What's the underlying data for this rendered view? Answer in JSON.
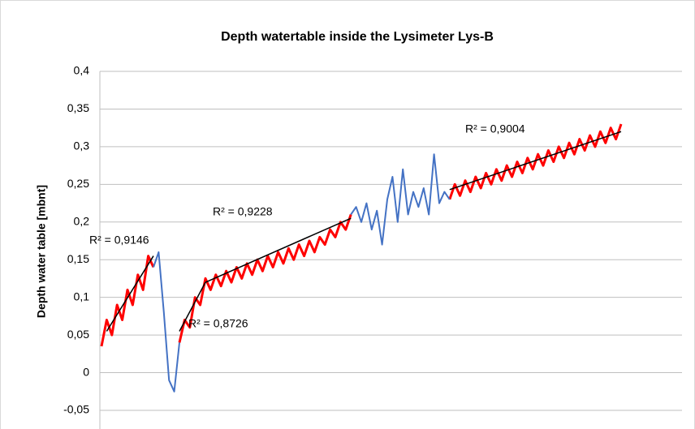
{
  "chart_data": {
    "type": "line",
    "title": "Depth watertable inside the Lysimeter Lys-B",
    "y_label": "Depth water table  [mbnt]",
    "ylim": [
      -0.05,
      0.4
    ],
    "yticks": [
      {
        "value": -0.05,
        "label": "-0,05"
      },
      0,
      {
        "value": 0.05,
        "label": "0,05"
      },
      {
        "value": 0.1,
        "label": "0,1"
      },
      {
        "value": 0.15,
        "label": "0,15"
      },
      {
        "value": 0.2,
        "label": "0,2"
      },
      {
        "value": 0.25,
        "label": "0,25"
      },
      {
        "value": 0.3,
        "label": "0,3"
      },
      {
        "value": 0.35,
        "label": "0,35"
      },
      {
        "value": 0.4,
        "label": "0,4"
      }
    ],
    "grid": true,
    "categories": [
      null,
      null,
      null,
      null,
      null,
      null,
      null,
      null,
      null,
      null,
      null,
      null,
      null,
      null,
      null,
      null,
      null,
      null,
      null,
      null,
      null,
      null,
      null,
      null,
      null,
      null,
      null,
      null,
      null,
      null,
      null,
      null,
      null,
      null,
      null,
      null,
      null,
      null,
      null,
      null,
      null,
      null,
      null,
      null,
      null,
      null,
      null,
      null,
      null,
      null,
      null,
      null,
      null,
      null,
      null,
      null,
      null,
      null,
      null,
      null,
      null,
      null,
      null,
      null,
      null,
      null,
      null,
      null,
      null,
      null,
      null,
      null,
      null,
      null,
      null,
      null,
      null,
      null,
      null,
      null,
      null,
      null,
      null,
      null,
      null,
      null,
      null,
      null,
      null,
      null,
      null,
      null,
      null,
      null,
      null,
      null,
      null,
      null,
      null,
      null,
      null
    ],
    "series": [
      {
        "color": "#ff0000",
        "values": [
          0.035,
          0.07,
          0.05,
          0.09,
          0.07,
          0.11,
          0.09,
          0.13,
          0.11,
          0.155,
          0.14,
          null,
          null,
          null,
          null,
          0.04,
          0.07,
          0.06,
          0.1,
          0.09,
          0.125,
          0.11,
          0.13,
          0.115,
          0.135,
          0.12,
          0.14,
          0.125,
          0.145,
          0.13,
          0.15,
          0.135,
          0.155,
          0.14,
          0.16,
          0.145,
          0.165,
          0.15,
          0.17,
          0.155,
          0.175,
          0.16,
          0.18,
          0.17,
          0.19,
          0.18,
          0.2,
          0.19,
          0.21,
          null,
          null,
          null,
          null,
          null,
          null,
          null,
          null,
          null,
          null,
          null,
          null,
          null,
          null,
          null,
          null,
          null,
          null,
          0.23,
          0.25,
          0.235,
          0.255,
          0.24,
          0.26,
          0.245,
          0.265,
          0.25,
          0.27,
          0.255,
          0.275,
          0.26,
          0.28,
          0.265,
          0.285,
          0.27,
          0.29,
          0.275,
          0.295,
          0.28,
          0.3,
          0.285,
          0.305,
          0.29,
          0.31,
          0.295,
          0.315,
          0.3,
          0.32,
          0.305,
          0.325,
          0.31,
          0.33
        ]
      },
      {
        "color": "#4472c4",
        "values": [
          null,
          null,
          null,
          null,
          null,
          null,
          null,
          null,
          null,
          null,
          0.14,
          0.16,
          0.08,
          -0.01,
          -0.025,
          0.04,
          null,
          null,
          null,
          null,
          null,
          null,
          null,
          null,
          null,
          null,
          null,
          null,
          null,
          null,
          null,
          null,
          null,
          null,
          null,
          null,
          null,
          null,
          null,
          null,
          null,
          null,
          null,
          null,
          null,
          null,
          null,
          null,
          0.21,
          0.22,
          0.2,
          0.225,
          0.19,
          0.215,
          0.17,
          0.23,
          0.26,
          0.2,
          0.27,
          0.21,
          0.24,
          0.22,
          0.245,
          0.21,
          0.29,
          0.225,
          0.24,
          0.23,
          null,
          null,
          null,
          null,
          null,
          null,
          null,
          null,
          null,
          null,
          null,
          null,
          null,
          null,
          null,
          null,
          null,
          null,
          null,
          null,
          null,
          null,
          null,
          null,
          null,
          null,
          null,
          null,
          null,
          null,
          null,
          null,
          null
        ]
      }
    ],
    "trendlines": [
      {
        "label": "R² = 0,9146",
        "color": "#000000",
        "values": [
          null,
          0.055,
          null,
          null,
          null,
          null,
          null,
          null,
          null,
          null,
          0.155,
          null,
          null,
          null,
          null,
          null,
          null,
          null,
          null,
          null,
          null,
          null,
          null,
          null,
          null,
          null,
          null,
          null,
          null,
          null,
          null,
          null,
          null,
          null,
          null,
          null,
          null,
          null,
          null,
          null,
          null,
          null,
          null,
          null,
          null,
          null,
          null,
          null,
          null,
          null,
          null,
          null,
          null,
          null,
          null,
          null,
          null,
          null,
          null,
          null,
          null,
          null,
          null,
          null,
          null,
          null,
          null,
          null,
          null,
          null,
          null,
          null,
          null,
          null,
          null,
          null,
          null,
          null,
          null,
          null,
          null,
          null,
          null,
          null,
          null,
          null,
          null,
          null,
          null,
          null,
          null,
          null,
          null,
          null,
          null,
          null,
          null,
          null,
          null,
          null,
          null
        ]
      },
      {
        "label": "R² = 0,8726",
        "color": "#000000",
        "values": [
          null,
          null,
          null,
          null,
          null,
          null,
          null,
          null,
          null,
          null,
          null,
          null,
          null,
          null,
          null,
          0.055,
          null,
          null,
          null,
          null,
          0.12,
          null,
          null,
          null,
          null,
          null,
          null,
          null,
          null,
          null,
          null,
          null,
          null,
          null,
          null,
          null,
          null,
          null,
          null,
          null,
          null,
          null,
          null,
          null,
          null,
          null,
          null,
          null,
          null,
          null,
          null,
          null,
          null,
          null,
          null,
          null,
          null,
          null,
          null,
          null,
          null,
          null,
          null,
          null,
          null,
          null,
          null,
          null,
          null,
          null,
          null,
          null,
          null,
          null,
          null,
          null,
          null,
          null,
          null,
          null,
          null,
          null,
          null,
          null,
          null,
          null,
          null,
          null,
          null,
          null,
          null,
          null,
          null,
          null,
          null,
          null,
          null,
          null,
          null,
          null,
          null
        ]
      },
      {
        "label": "R² = 0,9228",
        "color": "#000000",
        "values": [
          null,
          null,
          null,
          null,
          null,
          null,
          null,
          null,
          null,
          null,
          null,
          null,
          null,
          null,
          null,
          null,
          null,
          null,
          null,
          null,
          0.12,
          null,
          null,
          null,
          null,
          null,
          null,
          null,
          null,
          null,
          null,
          null,
          null,
          null,
          null,
          null,
          null,
          null,
          null,
          null,
          null,
          null,
          null,
          null,
          null,
          null,
          null,
          null,
          0.205,
          null,
          null,
          null,
          null,
          null,
          null,
          null,
          null,
          null,
          null,
          null,
          null,
          null,
          null,
          null,
          null,
          null,
          null,
          null,
          null,
          null,
          null,
          null,
          null,
          null,
          null,
          null,
          null,
          null,
          null,
          null,
          null,
          null,
          null,
          null,
          null,
          null,
          null,
          null,
          null,
          null,
          null,
          null,
          null,
          null,
          null,
          null,
          null,
          null,
          null,
          null,
          null
        ]
      },
      {
        "label": "R² = 0,9004",
        "color": "#000000",
        "values": [
          null,
          null,
          null,
          null,
          null,
          null,
          null,
          null,
          null,
          null,
          null,
          null,
          null,
          null,
          null,
          null,
          null,
          null,
          null,
          null,
          null,
          null,
          null,
          null,
          null,
          null,
          null,
          null,
          null,
          null,
          null,
          null,
          null,
          null,
          null,
          null,
          null,
          null,
          null,
          null,
          null,
          null,
          null,
          null,
          null,
          null,
          null,
          null,
          null,
          null,
          null,
          null,
          null,
          null,
          null,
          null,
          null,
          null,
          null,
          null,
          null,
          null,
          null,
          null,
          null,
          null,
          null,
          0.243,
          null,
          null,
          null,
          null,
          null,
          null,
          null,
          null,
          null,
          null,
          null,
          null,
          null,
          null,
          null,
          null,
          null,
          null,
          null,
          null,
          null,
          null,
          null,
          null,
          null,
          null,
          null,
          null,
          null,
          null,
          null,
          null,
          0.32
        ]
      }
    ]
  }
}
